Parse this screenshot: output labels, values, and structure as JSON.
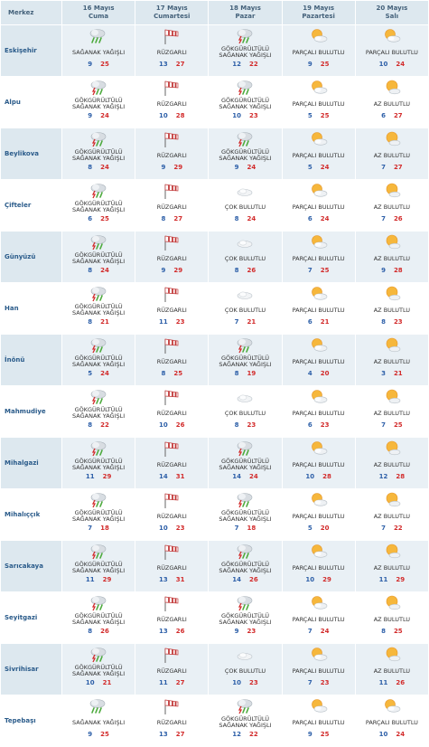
{
  "header": {
    "merkez": "Merkez",
    "days": [
      {
        "date": "16 Mayıs",
        "name": "Cuma"
      },
      {
        "date": "17 Mayıs",
        "name": "Cumartesi"
      },
      {
        "date": "18 Mayıs",
        "name": "Pazar"
      },
      {
        "date": "19 Mayıs",
        "name": "Pazartesi"
      },
      {
        "date": "20 Mayıs",
        "name": "Salı"
      }
    ]
  },
  "rows": [
    {
      "city": "Eskişehir",
      "days": [
        {
          "icon": "rain-icon",
          "cond": "SAĞANAK YAĞIŞLI",
          "min": "9",
          "max": "25"
        },
        {
          "icon": "windsock-icon",
          "cond": "RÜZGARLI",
          "min": "13",
          "max": "27"
        },
        {
          "icon": "thunderstorm-icon",
          "cond": "GÖKGÜRÜLTÜLÜ SAĞANAK YAĞIŞLI",
          "min": "12",
          "max": "22"
        },
        {
          "icon": "partly-cloudy-icon",
          "cond": "PARÇALI BULUTLU",
          "min": "9",
          "max": "25"
        },
        {
          "icon": "partly-cloudy-icon",
          "cond": "PARÇALI BULUTLU",
          "min": "10",
          "max": "24"
        }
      ]
    },
    {
      "city": "Alpu",
      "days": [
        {
          "icon": "thunderstorm-icon",
          "cond": "GÖKGÜRÜLTÜLÜ SAĞANAK YAĞIŞLI",
          "min": "9",
          "max": "24"
        },
        {
          "icon": "windsock-icon",
          "cond": "RÜZGARLI",
          "min": "10",
          "max": "28"
        },
        {
          "icon": "thunderstorm-icon",
          "cond": "GÖKGÜRÜLTÜLÜ SAĞANAK YAĞIŞLI",
          "min": "10",
          "max": "23"
        },
        {
          "icon": "partly-cloudy-icon",
          "cond": "PARÇALI BULUTLU",
          "min": "5",
          "max": "25"
        },
        {
          "icon": "sun-cloud-icon",
          "cond": "AZ BULUTLU",
          "min": "6",
          "max": "27"
        }
      ]
    },
    {
      "city": "Beylikova",
      "days": [
        {
          "icon": "thunderstorm-icon",
          "cond": "GÖKGÜRÜLTÜLÜ SAĞANAK YAĞIŞLI",
          "min": "8",
          "max": "24"
        },
        {
          "icon": "windsock-icon",
          "cond": "RÜZGARLI",
          "min": "9",
          "max": "29"
        },
        {
          "icon": "thunderstorm-icon",
          "cond": "GÖKGÜRÜLTÜLÜ SAĞANAK YAĞIŞLI",
          "min": "9",
          "max": "24"
        },
        {
          "icon": "partly-cloudy-icon",
          "cond": "PARÇALI BULUTLU",
          "min": "5",
          "max": "24"
        },
        {
          "icon": "sun-cloud-icon",
          "cond": "AZ BULUTLU",
          "min": "7",
          "max": "27"
        }
      ]
    },
    {
      "city": "Çifteler",
      "days": [
        {
          "icon": "thunderstorm-icon",
          "cond": "GÖKGÜRÜLTÜLÜ SAĞANAK YAĞIŞLI",
          "min": "6",
          "max": "25"
        },
        {
          "icon": "windsock-icon",
          "cond": "RÜZGARLI",
          "min": "8",
          "max": "27"
        },
        {
          "icon": "cloud-icon",
          "cond": "ÇOK BULUTLU",
          "min": "8",
          "max": "24"
        },
        {
          "icon": "partly-cloudy-icon",
          "cond": "PARÇALI BULUTLU",
          "min": "6",
          "max": "24"
        },
        {
          "icon": "sun-cloud-icon",
          "cond": "AZ BULUTLU",
          "min": "7",
          "max": "26"
        }
      ]
    },
    {
      "city": "Günyüzü",
      "days": [
        {
          "icon": "thunderstorm-icon",
          "cond": "GÖKGÜRÜLTÜLÜ SAĞANAK YAĞIŞLI",
          "min": "8",
          "max": "24"
        },
        {
          "icon": "windsock-icon",
          "cond": "RÜZGARLI",
          "min": "9",
          "max": "29"
        },
        {
          "icon": "cloud-icon",
          "cond": "ÇOK BULUTLU",
          "min": "8",
          "max": "26"
        },
        {
          "icon": "partly-cloudy-icon",
          "cond": "PARÇALI BULUTLU",
          "min": "7",
          "max": "25"
        },
        {
          "icon": "sun-cloud-icon",
          "cond": "AZ BULUTLU",
          "min": "9",
          "max": "28"
        }
      ]
    },
    {
      "city": "Han",
      "days": [
        {
          "icon": "thunderstorm-icon",
          "cond": "GÖKGÜRÜLTÜLÜ SAĞANAK YAĞIŞLI",
          "min": "8",
          "max": "21"
        },
        {
          "icon": "windsock-icon",
          "cond": "RÜZGARLI",
          "min": "11",
          "max": "23"
        },
        {
          "icon": "cloud-icon",
          "cond": "ÇOK BULUTLU",
          "min": "7",
          "max": "21"
        },
        {
          "icon": "partly-cloudy-icon",
          "cond": "PARÇALI BULUTLU",
          "min": "6",
          "max": "21"
        },
        {
          "icon": "sun-cloud-icon",
          "cond": "AZ BULUTLU",
          "min": "8",
          "max": "23"
        }
      ]
    },
    {
      "city": "İnönü",
      "days": [
        {
          "icon": "thunderstorm-icon",
          "cond": "GÖKGÜRÜLTÜLÜ SAĞANAK YAĞIŞLI",
          "min": "5",
          "max": "24"
        },
        {
          "icon": "windsock-icon",
          "cond": "RÜZGARLI",
          "min": "8",
          "max": "25"
        },
        {
          "icon": "thunderstorm-icon",
          "cond": "GÖKGÜRÜLTÜLÜ SAĞANAK YAĞIŞLI",
          "min": "8",
          "max": "19"
        },
        {
          "icon": "partly-cloudy-icon",
          "cond": "PARÇALI BULUTLU",
          "min": "4",
          "max": "20"
        },
        {
          "icon": "sun-cloud-icon",
          "cond": "AZ BULUTLU",
          "min": "3",
          "max": "21"
        }
      ]
    },
    {
      "city": "Mahmudiye",
      "days": [
        {
          "icon": "thunderstorm-icon",
          "cond": "GÖKGÜRÜLTÜLÜ SAĞANAK YAĞIŞLI",
          "min": "8",
          "max": "22"
        },
        {
          "icon": "windsock-icon",
          "cond": "RÜZGARLI",
          "min": "10",
          "max": "26"
        },
        {
          "icon": "cloud-icon",
          "cond": "ÇOK BULUTLU",
          "min": "8",
          "max": "23"
        },
        {
          "icon": "partly-cloudy-icon",
          "cond": "PARÇALI BULUTLU",
          "min": "6",
          "max": "23"
        },
        {
          "icon": "sun-cloud-icon",
          "cond": "AZ BULUTLU",
          "min": "7",
          "max": "25"
        }
      ]
    },
    {
      "city": "Mihalgazi",
      "days": [
        {
          "icon": "thunderstorm-icon",
          "cond": "GÖKGÜRÜLTÜLÜ SAĞANAK YAĞIŞLI",
          "min": "11",
          "max": "29"
        },
        {
          "icon": "windsock-icon",
          "cond": "RÜZGARLI",
          "min": "14",
          "max": "31"
        },
        {
          "icon": "thunderstorm-icon",
          "cond": "GÖKGÜRÜLTÜLÜ SAĞANAK YAĞIŞLI",
          "min": "14",
          "max": "24"
        },
        {
          "icon": "partly-cloudy-icon",
          "cond": "PARÇALI BULUTLU",
          "min": "10",
          "max": "28"
        },
        {
          "icon": "sun-cloud-icon",
          "cond": "AZ BULUTLU",
          "min": "12",
          "max": "28"
        }
      ]
    },
    {
      "city": "Mihalıççık",
      "days": [
        {
          "icon": "thunderstorm-icon",
          "cond": "GÖKGÜRÜLTÜLÜ SAĞANAK YAĞIŞLI",
          "min": "7",
          "max": "18"
        },
        {
          "icon": "windsock-icon",
          "cond": "RÜZGARLI",
          "min": "10",
          "max": "23"
        },
        {
          "icon": "thunderstorm-icon",
          "cond": "GÖKGÜRÜLTÜLÜ SAĞANAK YAĞIŞLI",
          "min": "7",
          "max": "18"
        },
        {
          "icon": "partly-cloudy-icon",
          "cond": "PARÇALI BULUTLU",
          "min": "5",
          "max": "20"
        },
        {
          "icon": "sun-cloud-icon",
          "cond": "AZ BULUTLU",
          "min": "7",
          "max": "22"
        }
      ]
    },
    {
      "city": "Sarıcakaya",
      "days": [
        {
          "icon": "thunderstorm-icon",
          "cond": "GÖKGÜRÜLTÜLÜ SAĞANAK YAĞIŞLI",
          "min": "11",
          "max": "29"
        },
        {
          "icon": "windsock-icon",
          "cond": "RÜZGARLI",
          "min": "13",
          "max": "31"
        },
        {
          "icon": "thunderstorm-icon",
          "cond": "GÖKGÜRÜLTÜLÜ SAĞANAK YAĞIŞLI",
          "min": "14",
          "max": "26"
        },
        {
          "icon": "partly-cloudy-icon",
          "cond": "PARÇALI BULUTLU",
          "min": "10",
          "max": "29"
        },
        {
          "icon": "sun-cloud-icon",
          "cond": "AZ BULUTLU",
          "min": "11",
          "max": "29"
        }
      ]
    },
    {
      "city": "Seyitgazi",
      "days": [
        {
          "icon": "thunderstorm-icon",
          "cond": "GÖKGÜRÜLTÜLÜ SAĞANAK YAĞIŞLI",
          "min": "8",
          "max": "26"
        },
        {
          "icon": "windsock-icon",
          "cond": "RÜZGARLI",
          "min": "13",
          "max": "26"
        },
        {
          "icon": "thunderstorm-icon",
          "cond": "GÖKGÜRÜLTÜLÜ SAĞANAK YAĞIŞLI",
          "min": "9",
          "max": "23"
        },
        {
          "icon": "partly-cloudy-icon",
          "cond": "PARÇALI BULUTLU",
          "min": "7",
          "max": "24"
        },
        {
          "icon": "sun-cloud-icon",
          "cond": "AZ BULUTLU",
          "min": "8",
          "max": "25"
        }
      ]
    },
    {
      "city": "Sivrihisar",
      "days": [
        {
          "icon": "thunderstorm-icon",
          "cond": "GÖKGÜRÜLTÜLÜ SAĞANAK YAĞIŞLI",
          "min": "10",
          "max": "21"
        },
        {
          "icon": "windsock-icon",
          "cond": "RÜZGARLI",
          "min": "11",
          "max": "27"
        },
        {
          "icon": "cloud-icon",
          "cond": "ÇOK BULUTLU",
          "min": "10",
          "max": "23"
        },
        {
          "icon": "partly-cloudy-icon",
          "cond": "PARÇALI BULUTLU",
          "min": "7",
          "max": "23"
        },
        {
          "icon": "sun-cloud-icon",
          "cond": "AZ BULUTLU",
          "min": "11",
          "max": "26"
        }
      ]
    },
    {
      "city": "Tepebaşı",
      "days": [
        {
          "icon": "rain-icon",
          "cond": "SAĞANAK YAĞIŞLI",
          "min": "9",
          "max": "25"
        },
        {
          "icon": "windsock-icon",
          "cond": "RÜZGARLI",
          "min": "13",
          "max": "27"
        },
        {
          "icon": "thunderstorm-icon",
          "cond": "GÖKGÜRÜLTÜLÜ SAĞANAK YAĞIŞLI",
          "min": "12",
          "max": "22"
        },
        {
          "icon": "partly-cloudy-icon",
          "cond": "PARÇALI BULUTLU",
          "min": "9",
          "max": "25"
        },
        {
          "icon": "partly-cloudy-icon",
          "cond": "PARÇALI BULUTLU",
          "min": "10",
          "max": "24"
        }
      ]
    }
  ],
  "colors": {
    "header_bg": "#dde8ef",
    "shade_bg": "#e9f0f5",
    "city_text": "#2a5b8a",
    "min_temp": "#2d5fa8",
    "max_temp": "#d22b2b"
  }
}
